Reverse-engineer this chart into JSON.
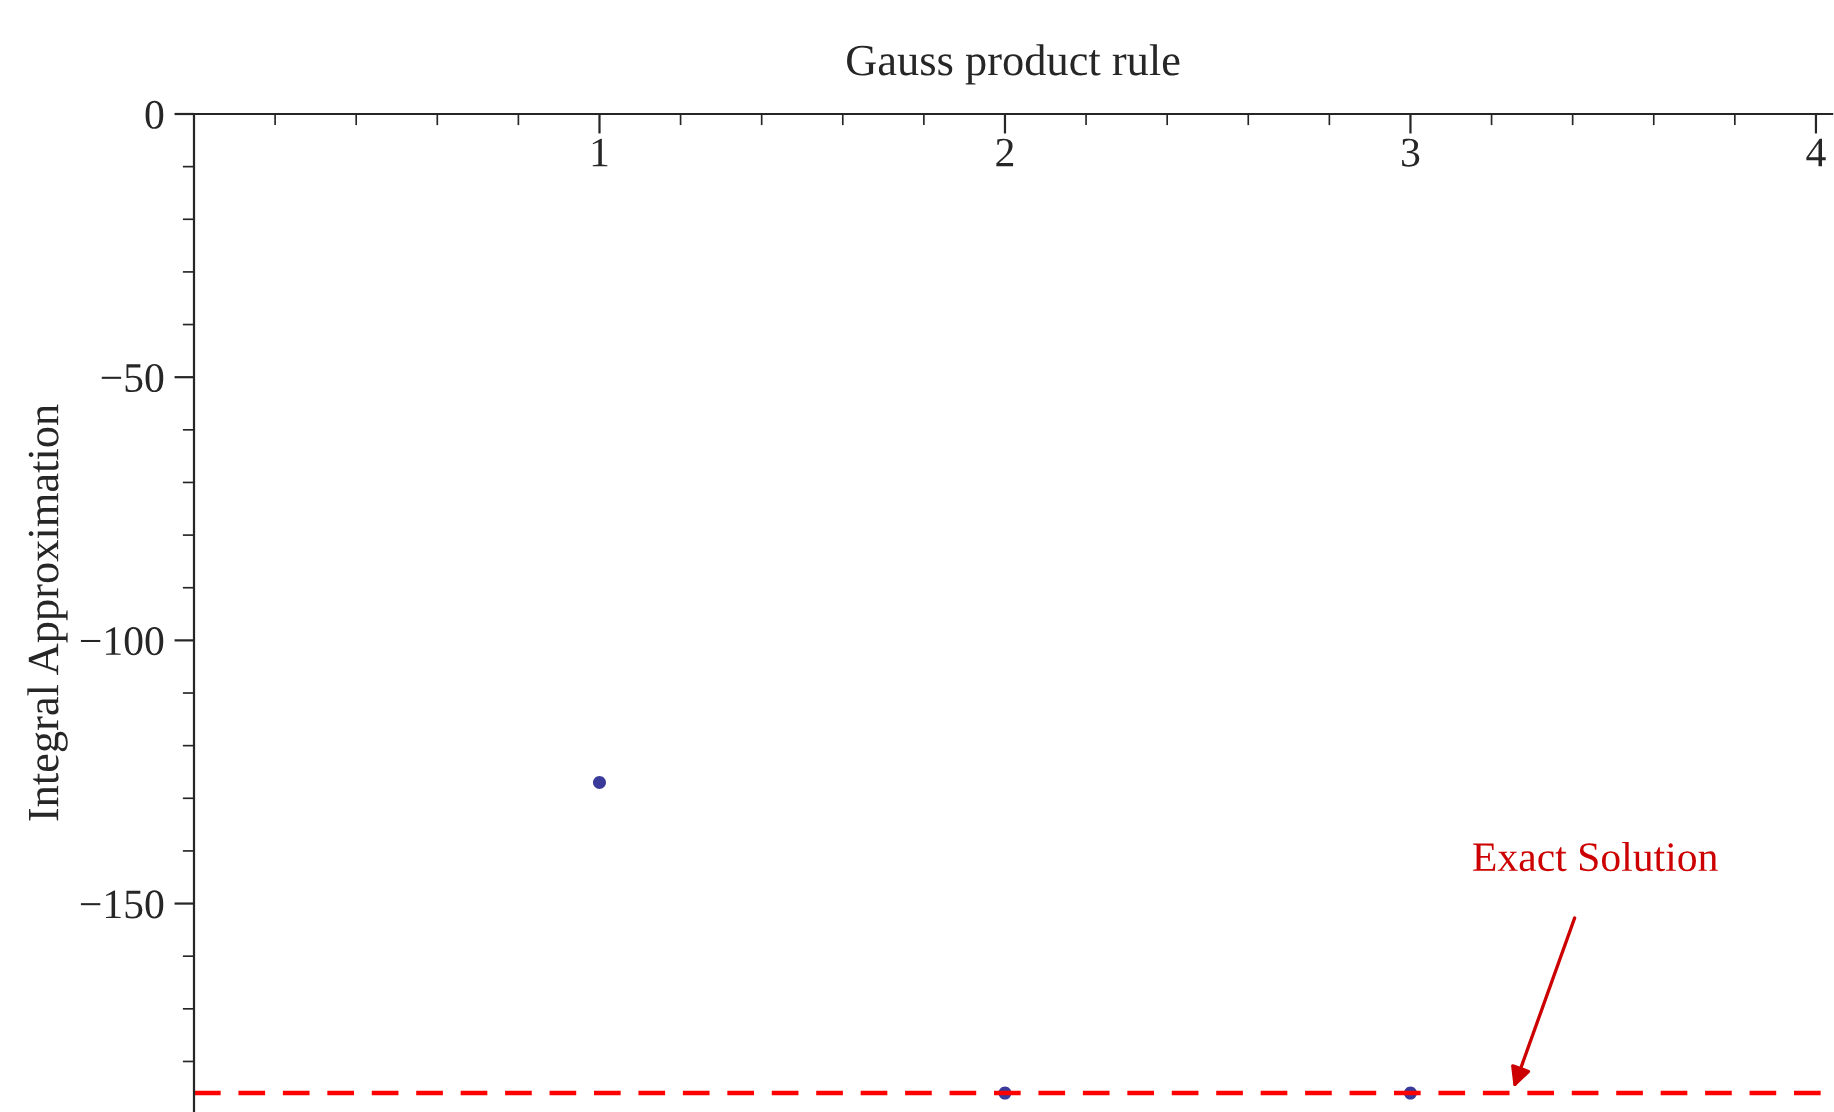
{
  "chart_data": {
    "type": "scatter",
    "title": "Gauss product rule",
    "ylabel": "Integral Approximation",
    "x": [
      1,
      2,
      3
    ],
    "series": [
      {
        "color": "#3a3a9a",
        "values": [
          -127,
          -186,
          -186
        ]
      }
    ],
    "marker": "circle",
    "xlim": [
      0,
      4.04
    ],
    "xticks": [
      1,
      2,
      3,
      4
    ],
    "ylim": [
      -189.6,
      0
    ],
    "yticks": [
      0,
      {
        "value": -50,
        "label": "−50"
      },
      {
        "value": -100,
        "label": "−100"
      },
      {
        "value": -150,
        "label": "−150"
      }
    ],
    "ref_lines": [
      {
        "axis": "y",
        "value": -186,
        "color": "#ff0000",
        "line_style": "dashed"
      }
    ],
    "annotations": [
      {
        "text": "Exact Solution",
        "x": 3.25,
        "y": -186
      }
    ],
    "grid": false,
    "legend": false
  }
}
